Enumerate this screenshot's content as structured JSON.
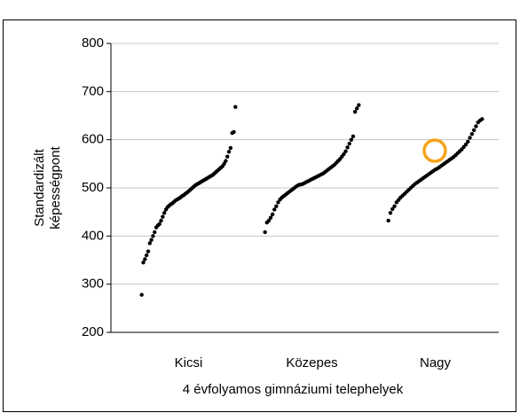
{
  "chart_data": {
    "type": "strip",
    "categories": [
      "Kicsi",
      "Közepes",
      "Nagy"
    ],
    "xlabel": "4 évfolyamos gimnáziumi telephelyek",
    "ylabel": [
      "Standardizált",
      "képességpont"
    ],
    "ylim": [
      200,
      800
    ],
    "yticks": [
      200,
      300,
      400,
      500,
      600,
      700,
      800
    ],
    "grid": true,
    "color": "#000000",
    "series": [
      {
        "values": [
          278,
          345,
          352,
          360,
          368,
          385,
          392,
          400,
          408,
          418,
          422,
          425,
          432,
          440,
          448,
          455,
          460,
          463,
          466,
          468,
          471,
          474,
          476,
          478,
          480,
          483,
          485,
          488,
          490,
          493,
          496,
          499,
          502,
          505,
          507,
          509,
          511,
          513,
          515,
          517,
          519,
          521,
          523,
          525,
          527,
          530,
          533,
          536,
          539,
          542,
          545,
          550,
          556,
          565,
          575,
          583,
          614,
          616,
          668
        ]
      },
      {
        "values": [
          408,
          428,
          432,
          438,
          445,
          455,
          462,
          470,
          476,
          480,
          483,
          486,
          489,
          492,
          495,
          498,
          501,
          504,
          506,
          507,
          508,
          510,
          512,
          514,
          516,
          518,
          520,
          522,
          524,
          526,
          528,
          530,
          533,
          536,
          539,
          542,
          545,
          548,
          552,
          556,
          560,
          565,
          570,
          576,
          584,
          592,
          600,
          607,
          658,
          665,
          672
        ]
      },
      {
        "values": [
          432,
          448,
          456,
          462,
          470,
          475,
          480,
          484,
          488,
          492,
          496,
          500,
          504,
          508,
          511,
          514,
          517,
          520,
          523,
          526,
          529,
          532,
          535,
          538,
          540,
          543,
          546,
          549,
          552,
          555,
          558,
          561,
          564,
          568,
          572,
          576,
          580,
          585,
          590,
          596,
          604,
          612,
          620,
          628,
          636,
          640,
          643
        ]
      }
    ]
  }
}
